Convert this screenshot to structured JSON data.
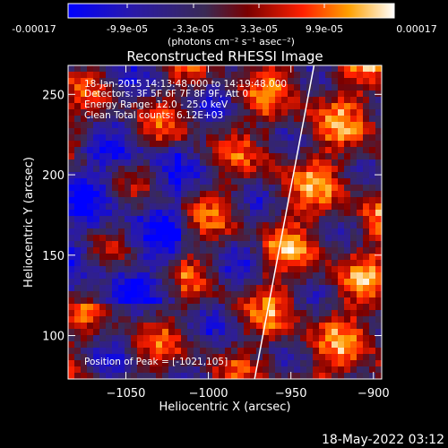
{
  "colorbar": {
    "tick_labels": [
      "-0.00017",
      "-9.9e-05",
      "-3.3e-05",
      "3.3e-05",
      "9.9e-05",
      "0.00017"
    ],
    "unit_label": "(photons cm⁻² s⁻¹ asec⁻²)",
    "range": [
      -0.00017,
      0.00017
    ]
  },
  "colors": {
    "background": "#000000",
    "foreground": "#ffffff",
    "limb": "#ffffff"
  },
  "chart_data": {
    "type": "heatmap",
    "title": "Reconstructed RHESSI Image",
    "xlabel": "Heliocentric X (arcsec)",
    "ylabel": "Heliocentric Y (arcsec)",
    "xlim": [
      -1085,
      -895
    ],
    "ylim": [
      73,
      268
    ],
    "x_ticks": [
      -1050,
      -1000,
      -950,
      -900
    ],
    "x_tick_labels": [
      "−1050",
      "−1000",
      "−950",
      "−900"
    ],
    "y_ticks": [
      100,
      150,
      200,
      250
    ],
    "y_tick_labels": [
      "100",
      "150",
      "200",
      "250"
    ],
    "grid": false,
    "colormap": "blue-purple-red-yellow-white",
    "limb_line": {
      "x": [
        -972,
        -936
      ],
      "y": [
        73,
        268
      ]
    },
    "annotations": [
      "18-Jan-2015 14:13:48.000 to 14:19:48.000",
      "Detectors: 3F 5F 6F 7F 8F 9F, Att 0",
      "Energy Range: 12.0 - 25.0 keV",
      "Clean    Total counts: 6.12E+03"
    ],
    "peak_label": "Position of Peak = [-1021,105]"
  },
  "timestamp": "18-May-2022 03:12"
}
